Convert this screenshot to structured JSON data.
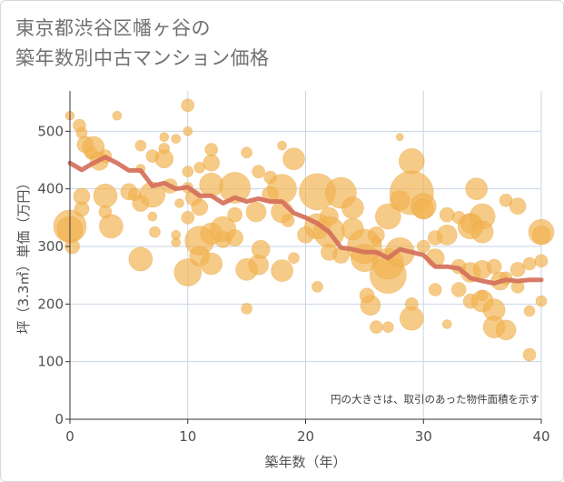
{
  "title": {
    "line1": "東京都渋谷区幡ヶ谷の",
    "line2": "築年数別中古マンション価格"
  },
  "colors": {
    "bubble": "#f2b24f",
    "bubble_stroke": "#e8a23a",
    "line": "#d4705a",
    "grid": "#c9d6e6",
    "axis": "#333333"
  },
  "chart_data": {
    "type": "scatter",
    "title": "",
    "xlabel": "築年数（年）",
    "ylabel": "坪（3.3㎡）単価（万円）",
    "xlim": [
      0,
      40
    ],
    "ylim": [
      0,
      570
    ],
    "xticks": [
      0,
      10,
      20,
      30,
      40
    ],
    "yticks": [
      0,
      100,
      200,
      300,
      400,
      500
    ],
    "grid": true,
    "annotation": "円の大きさは、取引のあった物件面積を示す",
    "bubbles": [
      [
        0,
        527,
        5
      ],
      [
        0,
        335,
        18
      ],
      [
        0,
        330,
        14
      ],
      [
        0.2,
        300,
        8
      ],
      [
        0.8,
        510,
        7
      ],
      [
        1,
        497,
        6
      ],
      [
        1,
        387,
        9
      ],
      [
        1,
        365,
        8
      ],
      [
        1.3,
        477,
        9
      ],
      [
        1.8,
        462,
        7
      ],
      [
        2,
        472,
        12
      ],
      [
        2.5,
        448,
        10
      ],
      [
        3,
        457,
        7
      ],
      [
        3,
        388,
        13
      ],
      [
        3,
        360,
        7
      ],
      [
        3.5,
        335,
        13
      ],
      [
        4,
        527,
        5
      ],
      [
        5,
        395,
        9
      ],
      [
        5.5,
        390,
        7
      ],
      [
        6,
        475,
        6
      ],
      [
        6,
        435,
        5
      ],
      [
        6,
        375,
        9
      ],
      [
        6,
        278,
        13
      ],
      [
        7,
        457,
        7
      ],
      [
        7,
        390,
        14
      ],
      [
        7,
        352,
        5
      ],
      [
        7.2,
        325,
        6
      ],
      [
        8,
        490,
        5
      ],
      [
        8,
        470,
        6
      ],
      [
        8,
        452,
        10
      ],
      [
        8.5,
        405,
        8
      ],
      [
        9,
        487,
        5
      ],
      [
        9,
        320,
        5
      ],
      [
        9,
        307,
        5
      ],
      [
        9.3,
        375,
        5
      ],
      [
        10,
        545,
        7
      ],
      [
        10,
        500,
        5
      ],
      [
        10,
        430,
        6
      ],
      [
        10,
        402,
        6
      ],
      [
        10,
        350,
        7
      ],
      [
        10,
        255,
        15
      ],
      [
        10.5,
        385,
        9
      ],
      [
        11,
        437,
        6
      ],
      [
        11,
        368,
        9
      ],
      [
        11,
        310,
        16
      ],
      [
        11,
        283,
        11
      ],
      [
        12,
        468,
        7
      ],
      [
        12,
        445,
        9
      ],
      [
        12,
        407,
        13
      ],
      [
        12,
        322,
        12
      ],
      [
        12,
        270,
        12
      ],
      [
        13,
        330,
        14
      ],
      [
        13,
        312,
        9
      ],
      [
        14,
        402,
        17
      ],
      [
        14,
        355,
        8
      ],
      [
        14,
        315,
        9
      ],
      [
        15,
        463,
        6
      ],
      [
        15,
        260,
        12
      ],
      [
        15,
        192,
        6
      ],
      [
        15.8,
        360,
        11
      ],
      [
        16,
        430,
        7
      ],
      [
        16,
        268,
        11
      ],
      [
        16.2,
        295,
        10
      ],
      [
        17,
        420,
        7
      ],
      [
        17,
        390,
        9
      ],
      [
        18,
        475,
        5
      ],
      [
        18,
        400,
        16
      ],
      [
        18,
        360,
        12
      ],
      [
        18,
        258,
        12
      ],
      [
        18.5,
        345,
        7
      ],
      [
        19,
        452,
        12
      ],
      [
        19,
        280,
        6
      ],
      [
        20,
        320,
        9
      ],
      [
        21,
        395,
        20
      ],
      [
        21,
        335,
        14
      ],
      [
        21,
        230,
        6
      ],
      [
        22,
        352,
        10
      ],
      [
        22,
        325,
        17
      ],
      [
        22,
        290,
        9
      ],
      [
        23,
        393,
        17
      ],
      [
        23,
        285,
        9
      ],
      [
        24,
        367,
        12
      ],
      [
        24,
        330,
        12
      ],
      [
        25,
        300,
        19
      ],
      [
        25,
        280,
        15
      ],
      [
        25.5,
        198,
        11
      ],
      [
        25.2,
        215,
        8
      ],
      [
        26,
        320,
        9
      ],
      [
        26,
        308,
        5
      ],
      [
        26,
        160,
        7
      ],
      [
        27,
        352,
        14
      ],
      [
        27,
        270,
        17
      ],
      [
        27,
        250,
        20
      ],
      [
        27,
        160,
        6
      ],
      [
        28,
        490,
        4
      ],
      [
        28,
        380,
        11
      ],
      [
        28,
        290,
        16
      ],
      [
        29,
        448,
        14
      ],
      [
        29,
        393,
        24
      ],
      [
        29,
        175,
        13
      ],
      [
        29,
        200,
        7
      ],
      [
        30,
        370,
        14
      ],
      [
        30,
        365,
        11
      ],
      [
        30,
        300,
        7
      ],
      [
        31,
        315,
        8
      ],
      [
        31,
        280,
        10
      ],
      [
        31,
        225,
        7
      ],
      [
        32,
        355,
        8
      ],
      [
        32,
        320,
        11
      ],
      [
        32,
        165,
        5
      ],
      [
        33,
        350,
        7
      ],
      [
        33,
        265,
        8
      ],
      [
        33,
        225,
        8
      ],
      [
        34,
        340,
        11
      ],
      [
        34,
        335,
        14
      ],
      [
        34,
        205,
        8
      ],
      [
        34,
        255,
        11
      ],
      [
        34.5,
        400,
        12
      ],
      [
        35,
        352,
        14
      ],
      [
        35,
        325,
        12
      ],
      [
        35,
        260,
        10
      ],
      [
        35,
        215,
        6
      ],
      [
        35,
        205,
        12
      ],
      [
        36,
        265,
        8
      ],
      [
        36,
        190,
        12
      ],
      [
        36,
        160,
        12
      ],
      [
        36.5,
        240,
        10
      ],
      [
        37,
        380,
        7
      ],
      [
        37,
        245,
        7
      ],
      [
        37,
        155,
        11
      ],
      [
        38,
        370,
        9
      ],
      [
        38,
        260,
        8
      ],
      [
        38,
        230,
        7
      ],
      [
        39,
        270,
        7
      ],
      [
        39,
        188,
        6
      ],
      [
        39,
        112,
        7
      ],
      [
        40,
        325,
        14
      ],
      [
        40,
        320,
        10
      ],
      [
        40,
        275,
        7
      ],
      [
        40,
        205,
        6
      ]
    ],
    "series": [
      {
        "x": [
          0,
          1,
          2,
          3,
          4,
          5,
          6,
          7,
          8,
          9,
          10,
          11,
          12,
          13,
          14,
          15,
          16,
          17,
          18,
          19,
          20,
          21,
          22,
          23,
          24,
          25,
          26,
          27,
          28,
          29,
          30,
          31,
          32,
          33,
          34,
          35,
          36,
          37,
          38,
          39,
          40
        ],
        "values": [
          445,
          433,
          445,
          455,
          445,
          432,
          432,
          405,
          410,
          400,
          403,
          388,
          388,
          375,
          385,
          378,
          383,
          378,
          378,
          358,
          350,
          340,
          325,
          298,
          295,
          290,
          290,
          280,
          295,
          290,
          285,
          265,
          265,
          262,
          245,
          240,
          236,
          242,
          240,
          242,
          242
        ]
      }
    ]
  }
}
